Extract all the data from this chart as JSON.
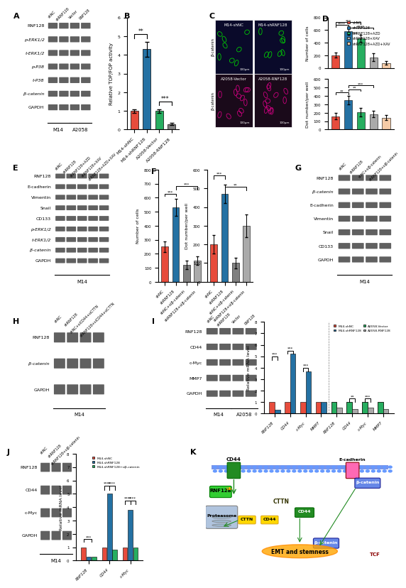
{
  "panel_labels": [
    "A",
    "B",
    "C",
    "D",
    "E",
    "F",
    "G",
    "H",
    "I",
    "J",
    "K"
  ],
  "panel_A": {
    "western_rows": [
      "RNF128",
      "p-ERK1/2",
      "t-ERK1/2",
      "p-P38",
      "t-P38",
      "β-catenin",
      "GAPDH"
    ],
    "groups": [
      "M14",
      "A2058"
    ],
    "lanes_per_group": 2,
    "lane_labels": [
      "shNC",
      "shRNF128",
      "Vector",
      "RNF128"
    ]
  },
  "panel_B": {
    "categories": [
      "M14-shNC",
      "M14-shRNF128",
      "A2058-Vector",
      "A2058-RNF128"
    ],
    "values": [
      1.0,
      4.3,
      1.0,
      0.3
    ],
    "errors": [
      0.1,
      0.4,
      0.1,
      0.05
    ],
    "colors": [
      "#e74c3c",
      "#2471a3",
      "#27ae60",
      "#808080"
    ],
    "ylabel": "Relative TOP/FOP activity",
    "sig_pairs": [
      [
        "M14-shNC",
        "M14-shRNF128",
        "**"
      ],
      [
        "A2058-Vector",
        "A2058-RNF128",
        "***"
      ]
    ],
    "ylim": [
      0,
      6
    ]
  },
  "panel_D_top": {
    "categories": [
      "shNC",
      "shRNF128",
      "shRNF128+AZD",
      "shRNF128+XAV",
      "shRNF128+AZD+XAV"
    ],
    "values": [
      200,
      580,
      470,
      170,
      80
    ],
    "errors": [
      40,
      50,
      60,
      60,
      30
    ],
    "colors": [
      "#e74c3c",
      "#2471a3",
      "#27ae60",
      "#aaaaaa",
      "#f5cba7"
    ],
    "ylabel": "Number of cells",
    "ylim": [
      0,
      800
    ],
    "sig_pairs": [
      [
        "shNC",
        "shRNF128",
        "****"
      ],
      [
        "shNC",
        "shRNF128+AZD",
        "***"
      ],
      [
        "shRNF128",
        "shRNF128+XAV",
        "****"
      ]
    ]
  },
  "panel_D_bottom": {
    "categories": [
      "shNC",
      "shRNF128",
      "shRNF128+AZD",
      "shRNF128+XAV",
      "shRNF128+AZD+XAV"
    ],
    "values": [
      160,
      350,
      210,
      185,
      140
    ],
    "errors": [
      35,
      50,
      50,
      40,
      30
    ],
    "colors": [
      "#e74c3c",
      "#2471a3",
      "#27ae60",
      "#aaaaaa",
      "#f5cba7"
    ],
    "ylabel": "Dot number/per well",
    "ylim": [
      0,
      600
    ],
    "sig_pairs": [
      [
        "shNC",
        "shRNF128",
        "**"
      ],
      [
        "shRNF128",
        "shRNF128+AZD",
        "**"
      ],
      [
        "shRNF128",
        "shRNF128+XAV",
        "***"
      ]
    ]
  },
  "panel_E": {
    "western_rows": [
      "RNF128",
      "E-cadherin",
      "Vimentin",
      "Snail",
      "CD133",
      "p-ERK1/2",
      "t-ERK1/2",
      "β-catenin",
      "GAPDH"
    ],
    "conditions": [
      "shNC",
      "shRNF128",
      "shRNF128+AZD",
      "shRNF128+XAV",
      "shRNF128+AZD+XAV"
    ],
    "cell_line": "M14"
  },
  "panel_F_left": {
    "categories": [
      "shNC",
      "shRNF128",
      "shNC+siβ-catenin",
      "shRNF128+siβ-catenin"
    ],
    "values": [
      250,
      530,
      120,
      150
    ],
    "errors": [
      40,
      60,
      30,
      30
    ],
    "colors": [
      "#e74c3c",
      "#2471a3",
      "#808080",
      "#aaaaaa"
    ],
    "ylabel": "Number of cells",
    "ylim": [
      0,
      800
    ],
    "sig_pairs": [
      [
        "shNC",
        "shRNF128",
        "***"
      ],
      [
        "shRNF128",
        "shRNF128+siβ-catenin",
        "***"
      ]
    ]
  },
  "panel_F_right": {
    "categories": [
      "shNC",
      "shRNF128",
      "shNC+siβ-catenin",
      "shRNF128+siβ-catenin"
    ],
    "values": [
      200,
      470,
      100,
      300
    ],
    "errors": [
      50,
      50,
      30,
      60
    ],
    "colors": [
      "#e74c3c",
      "#2471a3",
      "#808080",
      "#aaaaaa"
    ],
    "ylabel": "Dot number/per well",
    "ylim": [
      0,
      600
    ],
    "sig_pairs": [
      [
        "shNC",
        "shRNF128",
        "***"
      ],
      [
        "shRNF128",
        "shRNF128+siβ-catenin",
        "**"
      ]
    ]
  },
  "panel_G": {
    "western_rows": [
      "RNF128",
      "β-catenin",
      "E-cadherin",
      "Vimentin",
      "Snail",
      "CD133",
      "GAPDH"
    ],
    "conditions": [
      "shNC",
      "shRNF128",
      "shNC+siβ-catenin",
      "shRNF128+siβ-catenin"
    ],
    "cell_line": "M14"
  },
  "panel_H": {
    "western_rows": [
      "RNF128",
      "β-catenin",
      "GAPDH"
    ],
    "conditions": [
      "shNC",
      "shRNF128",
      "shNC+siCD44+siCTTN",
      "shRNF128+siCD44+siCTTN"
    ],
    "cell_line": "M14"
  },
  "panel_I_western": {
    "western_rows": [
      "RNF128",
      "CD44",
      "c-Myc",
      "MMP7",
      "GAPDH"
    ],
    "groups": [
      "M14",
      "A2058"
    ],
    "lanes_per_group": 2,
    "lane_labels": [
      "shNC",
      "shRNF128",
      "Vector",
      "RNF128"
    ]
  },
  "panel_I_bar": {
    "groups": [
      "RNF128",
      "CD44",
      "c-Myc",
      "MMP7",
      "RNF128",
      "CD44",
      "c-Myc",
      "MMP7"
    ],
    "series": [
      {
        "label": "M14-shNC",
        "color": "#e74c3c",
        "values": [
          1.0,
          1.0,
          1.0,
          1.0,
          1.0,
          1.0,
          1.0,
          1.0
        ]
      },
      {
        "label": "M14-shRNF128",
        "color": "#2471a3",
        "values": [
          0.3,
          5.2,
          3.7,
          1.0,
          null,
          null,
          null,
          null
        ]
      },
      {
        "label": "A2058-Vector",
        "color": "#27ae60",
        "values": [
          null,
          null,
          null,
          null,
          1.0,
          1.0,
          1.0,
          1.0
        ]
      },
      {
        "label": "A2058-RNF128",
        "color": "#aaaaaa",
        "values": [
          null,
          null,
          null,
          null,
          0.5,
          0.4,
          0.5,
          0.4
        ]
      }
    ],
    "ylabel": "Relative mRNA level",
    "ylim": [
      0,
      8
    ],
    "sig_groups1_pairs": [
      [
        "RNF128",
        "***"
      ],
      [
        "CD44",
        "***"
      ],
      [
        "c-Myc",
        "***"
      ]
    ],
    "sig_groups2_pairs": [
      [
        "CD44",
        "**"
      ],
      [
        "c-Myc",
        "***"
      ]
    ]
  },
  "panel_J_bar": {
    "groups": [
      "RNF128",
      "CD44",
      "c-Myc"
    ],
    "series": [
      {
        "label": "M14-shNC",
        "color": "#e74c3c",
        "values": [
          1.0,
          1.0,
          1.0
        ]
      },
      {
        "label": "M14-shRNF128",
        "color": "#2471a3",
        "values": [
          0.3,
          5.0,
          3.8
        ]
      },
      {
        "label": "M14-shRNF128+siβ-catenin",
        "color": "#27ae60",
        "values": [
          0.3,
          0.8,
          1.0
        ]
      }
    ],
    "ylabel": "Relative mRNA level",
    "ylim": [
      0,
      8
    ],
    "sig_pairs": [
      [
        "RNF128",
        "***"
      ],
      [
        "CD44",
        "****,****"
      ],
      [
        "c-Myc",
        "****,****"
      ]
    ]
  },
  "legend_D": {
    "labels": [
      "shNC",
      "shRNF128",
      "shRNF128+AZD",
      "shRNF128+XAV",
      "shRNF128+AZD+XAV"
    ],
    "colors": [
      "#e74c3c",
      "#2471a3",
      "#27ae60",
      "#aaaaaa",
      "#f5cba7"
    ]
  }
}
